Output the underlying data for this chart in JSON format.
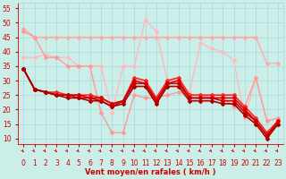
{
  "xlabel": "Vent moyen/en rafales ( km/h )",
  "background_color": "#cceee8",
  "grid_color": "#aadddd",
  "x": [
    0,
    1,
    2,
    3,
    4,
    5,
    6,
    7,
    8,
    9,
    10,
    11,
    12,
    13,
    14,
    15,
    16,
    17,
    18,
    19,
    20,
    21,
    22,
    23
  ],
  "lines": [
    {
      "y": [
        48,
        45,
        45,
        45,
        45,
        45,
        45,
        45,
        45,
        45,
        45,
        45,
        45,
        45,
        45,
        45,
        45,
        45,
        45,
        45,
        45,
        45,
        36,
        36
      ],
      "color": "#ffaaaa",
      "lw": 1.0
    },
    {
      "y": [
        38,
        38,
        39,
        38,
        38,
        35,
        35,
        35,
        19,
        35,
        35,
        51,
        47,
        30,
        30,
        26,
        43,
        41,
        40,
        37,
        17,
        31,
        16,
        17
      ],
      "color": "#ffbbbb",
      "lw": 1.0
    },
    {
      "y": [
        47,
        45,
        38,
        38,
        35,
        35,
        35,
        19,
        12,
        12,
        25,
        24,
        24,
        25,
        26,
        25,
        25,
        24,
        24,
        21,
        21,
        31,
        16,
        17
      ],
      "color": "#ff9999",
      "lw": 1.0
    },
    {
      "y": [
        34,
        27,
        26,
        26,
        25,
        25,
        25,
        24,
        22,
        23,
        31,
        30,
        24,
        30,
        31,
        25,
        25,
        25,
        25,
        25,
        21,
        17,
        12,
        16
      ],
      "color": "#ff2222",
      "lw": 1.2
    },
    {
      "y": [
        34,
        27,
        26,
        25,
        25,
        25,
        24,
        24,
        22,
        23,
        30,
        29,
        23,
        29,
        30,
        24,
        24,
        24,
        24,
        24,
        20,
        16,
        11,
        16
      ],
      "color": "#dd0000",
      "lw": 1.2
    },
    {
      "y": [
        34,
        27,
        26,
        25,
        25,
        24,
        24,
        23,
        21,
        23,
        29,
        29,
        23,
        29,
        29,
        24,
        24,
        24,
        23,
        23,
        19,
        16,
        11,
        15
      ],
      "color": "#cc0000",
      "lw": 1.2
    },
    {
      "y": [
        34,
        27,
        26,
        25,
        24,
        24,
        23,
        23,
        21,
        22,
        28,
        28,
        22,
        28,
        28,
        23,
        23,
        23,
        22,
        22,
        18,
        15,
        10,
        15
      ],
      "color": "#aa0000",
      "lw": 1.2
    }
  ],
  "ylim": [
    8,
    57
  ],
  "yticks": [
    10,
    15,
    20,
    25,
    30,
    35,
    40,
    45,
    50,
    55
  ],
  "xticks": [
    0,
    1,
    2,
    3,
    4,
    5,
    6,
    7,
    8,
    9,
    10,
    11,
    12,
    13,
    14,
    15,
    16,
    17,
    18,
    19,
    20,
    21,
    22,
    23
  ],
  "tick_color": "#cc0000",
  "marker": "D",
  "markersize": 2.0
}
